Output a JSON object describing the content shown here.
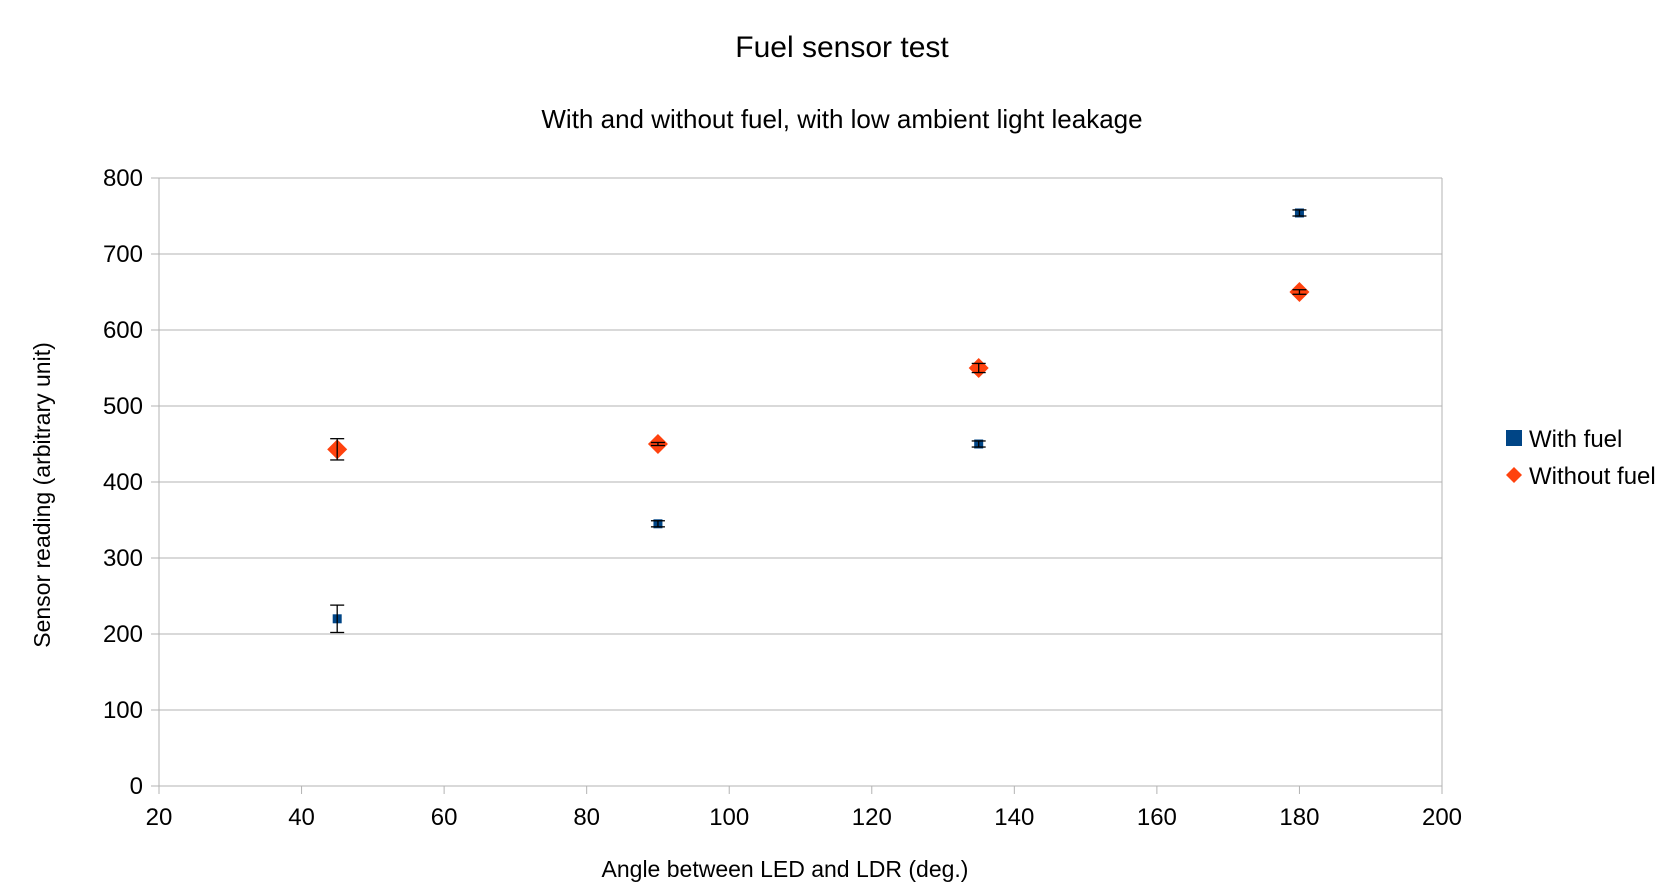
{
  "chart_data": {
    "type": "scatter",
    "title": "Fuel sensor test",
    "subtitle": "With and without fuel, with low ambient light leakage",
    "xlabel": "Angle between LED and LDR (deg.)",
    "ylabel": "Sensor reading (arbitrary unit)",
    "xlim": [
      20,
      200
    ],
    "ylim": [
      0,
      800
    ],
    "xticks": [
      20,
      40,
      60,
      80,
      100,
      120,
      140,
      160,
      180,
      200
    ],
    "yticks": [
      0,
      100,
      200,
      300,
      400,
      500,
      600,
      700,
      800
    ],
    "grid": "horizontal",
    "legend_position": "right",
    "series": [
      {
        "name": "With fuel",
        "marker": "square",
        "color": "#004586",
        "points": [
          {
            "x": 45,
            "y": 220,
            "err": 18
          },
          {
            "x": 90,
            "y": 345,
            "err": 4
          },
          {
            "x": 135,
            "y": 450,
            "err": 4
          },
          {
            "x": 180,
            "y": 754,
            "err": 4
          }
        ]
      },
      {
        "name": "Without fuel",
        "marker": "diamond",
        "color": "#ff420e",
        "points": [
          {
            "x": 45,
            "y": 443,
            "err": 14
          },
          {
            "x": 90,
            "y": 450,
            "err": 2
          },
          {
            "x": 135,
            "y": 550,
            "err": 6
          },
          {
            "x": 180,
            "y": 650,
            "err": 3
          }
        ]
      }
    ]
  }
}
